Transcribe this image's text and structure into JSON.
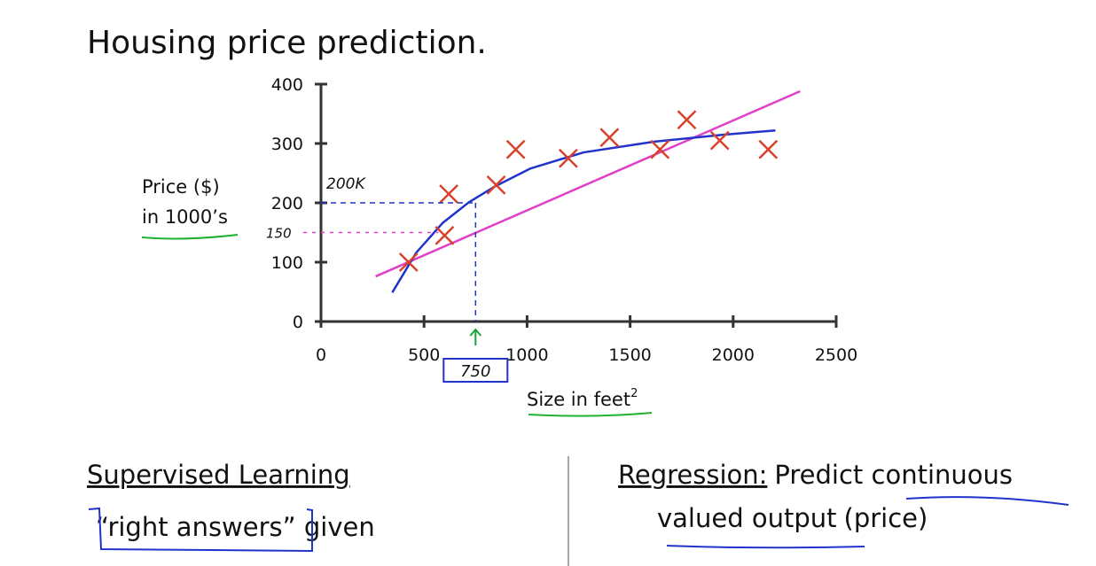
{
  "slide": {
    "title": "Housing price prediction.",
    "left": {
      "heading": "Supervised Learning",
      "text": "“right answers” given"
    },
    "right": {
      "heading": "Regression:",
      "text1": "Predict continuous",
      "text2": "valued output",
      "text3": "(price)"
    }
  },
  "chart_data": {
    "type": "scatter",
    "ylabel": [
      "Price ($)",
      "in 1000’s"
    ],
    "xlabel": "Size in feet",
    "xlabel_sup": "2",
    "xlim": [
      0,
      2500
    ],
    "ylim": [
      0,
      400
    ],
    "xticks": [
      0,
      500,
      1000,
      1500,
      2000,
      2500
    ],
    "yticks": [
      0,
      100,
      200,
      300,
      400
    ],
    "series": [
      {
        "color": "#d9412b",
        "x": [
          425,
          600,
          620,
          850,
          945,
          1200,
          1400,
          1645,
          1775,
          1935,
          2170
        ],
        "values": [
          100,
          145,
          215,
          230,
          290,
          275,
          310,
          290,
          340,
          305,
          290
        ]
      }
    ],
    "fits": [
      {
        "color": "#e040c8",
        "x": [
          265,
          2325
        ],
        "values": [
          76,
          388
        ]
      },
      {
        "color": "#2233cc",
        "x": [
          346,
          462,
          590,
          718,
          846,
          1017,
          1274,
          1615,
          1957,
          2205
        ],
        "values": [
          49,
          116,
          166,
          201,
          228,
          258,
          285,
          303,
          315,
          322
        ]
      }
    ],
    "annotations": [
      {
        "text": "200K",
        "y": 200,
        "color": "#2233cc"
      },
      {
        "text": "150",
        "y": 150,
        "color": "#e040c8"
      },
      {
        "text": "750",
        "x": 750,
        "color": "#1aa33a"
      }
    ]
  }
}
